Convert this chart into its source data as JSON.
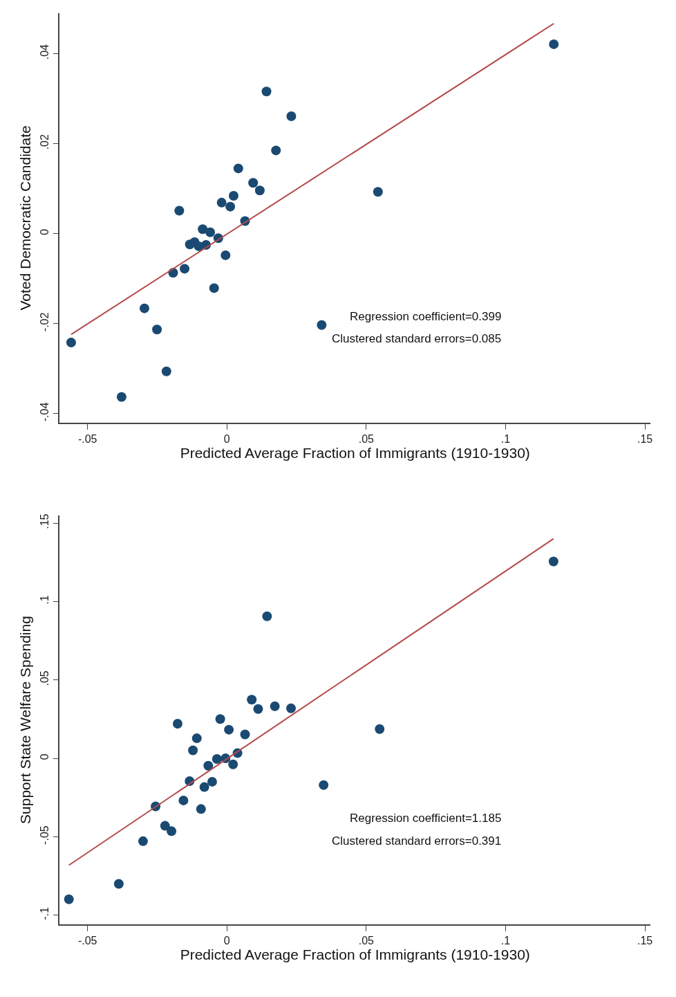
{
  "chart_data": [
    {
      "type": "scatter",
      "xlabel": "Predicted Average Fraction of Immigrants (1910-1930)",
      "ylabel": "Voted Democratic Candidate",
      "xlim": [
        -0.06,
        0.152
      ],
      "ylim": [
        -0.042,
        0.049
      ],
      "xticks": [
        {
          "value": -0.05,
          "label": "-.05"
        },
        0,
        {
          "value": 0.05,
          "label": ".05"
        },
        {
          "value": 0.1,
          "label": ".1"
        },
        {
          "value": 0.15,
          "label": ".15"
        }
      ],
      "yticks": [
        {
          "value": -0.04,
          "label": "-.04"
        },
        {
          "value": -0.02,
          "label": "-.02"
        },
        0,
        {
          "value": 0.02,
          "label": ".02"
        },
        {
          "value": 0.04,
          "label": ".04"
        }
      ],
      "series": [
        {
          "marker": "circle",
          "color": "#1a4a72",
          "x": [
            -0.0559,
            -0.0378,
            -0.0296,
            -0.0251,
            -0.0217,
            -0.0193,
            -0.0171,
            -0.0152,
            -0.0133,
            -0.0116,
            -0.0101,
            -0.0087,
            -0.0075,
            -0.006,
            -0.0046,
            -0.0031,
            -0.0019,
            -0.0005,
            0.0012,
            0.0024,
            0.0041,
            0.0065,
            0.0094,
            0.0118,
            0.0142,
            0.0176,
            0.0231,
            0.034,
            0.0542,
            0.1173
          ],
          "values": [
            -0.0242,
            -0.0363,
            -0.0166,
            -0.0213,
            -0.0306,
            -0.0087,
            0.0051,
            -0.0078,
            -0.0024,
            -0.0019,
            -0.0028,
            0.001,
            -0.0025,
            0.0003,
            -0.0121,
            -0.001,
            0.0069,
            -0.0048,
            0.006,
            0.0084,
            0.0145,
            0.0028,
            0.0113,
            0.0096,
            0.0316,
            0.0185,
            0.0261,
            -0.0203,
            0.0093,
            0.0421
          ]
        },
        {
          "type": "line",
          "color": "#b5494a",
          "x": [
            -0.0559,
            0.1173
          ],
          "values": [
            -0.0224,
            0.0467
          ]
        }
      ],
      "annotations": [
        "Regression coefficient=0.399",
        "Clustered standard errors=0.085"
      ]
    },
    {
      "type": "scatter",
      "xlabel": "Predicted Average Fraction of Immigrants (1910-1930)",
      "ylabel": "Support State Welfare Spending",
      "xlim": [
        -0.06,
        0.152
      ],
      "ylim": [
        -0.106,
        0.155
      ],
      "xticks": [
        {
          "value": -0.05,
          "label": "-.05"
        },
        0,
        {
          "value": 0.05,
          "label": ".05"
        },
        {
          "value": 0.1,
          "label": ".1"
        },
        {
          "value": 0.15,
          "label": ".15"
        }
      ],
      "yticks": [
        {
          "value": -0.1,
          "label": "-.1"
        },
        {
          "value": -0.05,
          "label": "-.05"
        },
        0,
        {
          "value": 0.05,
          "label": ".05"
        },
        {
          "value": 0.1,
          "label": ".1"
        },
        {
          "value": 0.15,
          "label": ".15"
        }
      ],
      "series": [
        {
          "marker": "circle",
          "color": "#1a4a72",
          "x": [
            -0.0567,
            -0.0388,
            -0.0301,
            -0.0256,
            -0.0222,
            -0.0199,
            -0.0177,
            -0.0156,
            -0.0134,
            -0.0122,
            -0.0108,
            -0.0093,
            -0.0081,
            -0.0067,
            -0.0053,
            -0.0036,
            -0.0024,
            -0.0005,
            0.0007,
            0.0022,
            0.0038,
            0.0065,
            0.0089,
            0.0112,
            0.0144,
            0.0172,
            0.023,
            0.0347,
            0.0548,
            0.1172
          ],
          "values": [
            -0.0898,
            -0.08,
            -0.0528,
            -0.0306,
            -0.043,
            -0.0464,
            0.0221,
            -0.0268,
            -0.0145,
            0.0051,
            0.0128,
            -0.0323,
            -0.0183,
            -0.0047,
            -0.0149,
            -0.0004,
            0.0251,
            0.0,
            0.0183,
            -0.0038,
            0.0034,
            0.0153,
            0.0374,
            0.0315,
            0.0906,
            0.0332,
            0.0319,
            -0.017,
            0.0187,
            0.1255
          ]
        },
        {
          "type": "line",
          "color": "#b5494a",
          "x": [
            -0.0567,
            0.1172
          ],
          "values": [
            -0.0681,
            0.14
          ]
        }
      ],
      "annotations": [
        "Regression coefficient=1.185",
        "Clustered standard errors=0.391"
      ]
    }
  ]
}
